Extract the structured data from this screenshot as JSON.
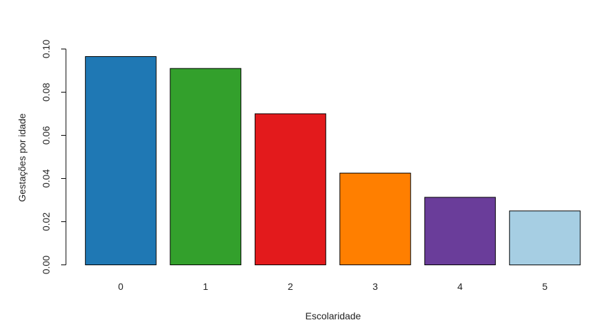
{
  "chart_data": {
    "type": "bar",
    "categories": [
      "0",
      "1",
      "2",
      "3",
      "4",
      "5"
    ],
    "values": [
      0.0965,
      0.091,
      0.07,
      0.0425,
      0.0313,
      0.025
    ],
    "colors": [
      "#1f78b4",
      "#33a02c",
      "#e31a1c",
      "#ff7f00",
      "#6a3d9a",
      "#a6cee3"
    ],
    "title": "",
    "xlabel": "Escolaridade",
    "ylabel": "Gestações por idade",
    "ylim": [
      0,
      0.1
    ],
    "yticks": [
      0.0,
      0.02,
      0.04,
      0.06,
      0.08,
      0.1
    ],
    "ytick_labels": [
      "0.00",
      "0.02",
      "0.04",
      "0.06",
      "0.08",
      "0.10"
    ],
    "grid": false,
    "legend": "none"
  }
}
